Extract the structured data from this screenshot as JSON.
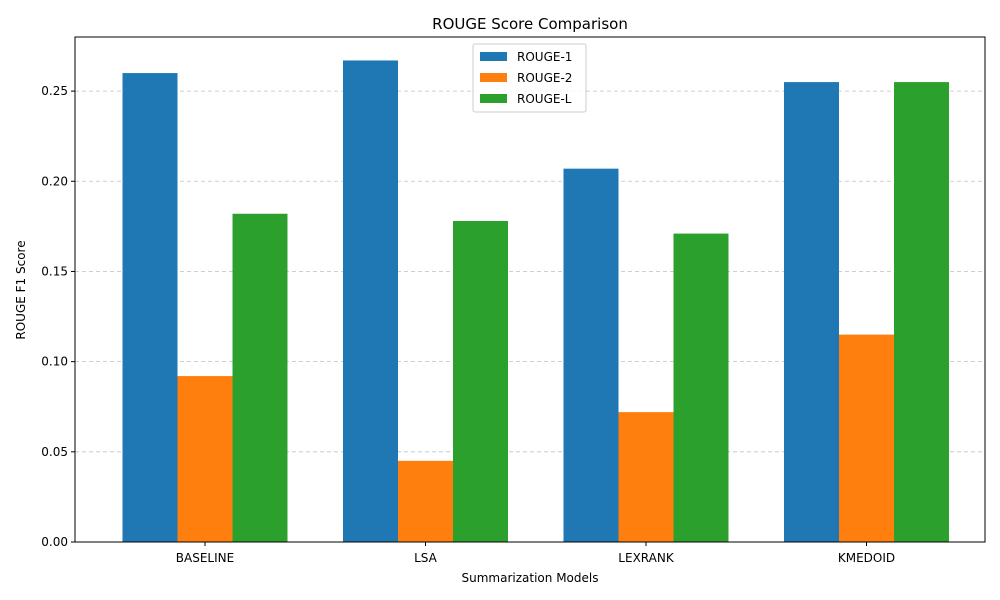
{
  "chart_data": {
    "type": "bar",
    "title": "ROUGE Score Comparison",
    "xlabel": "Summarization Models",
    "ylabel": "ROUGE F1 Score",
    "categories": [
      "BASELINE",
      "LSA",
      "LEXRANK",
      "KMEDOID"
    ],
    "series": [
      {
        "name": "ROUGE-1",
        "color": "#1f77b4",
        "values": [
          0.26,
          0.267,
          0.207,
          0.255
        ]
      },
      {
        "name": "ROUGE-2",
        "color": "#ff7f0e",
        "values": [
          0.092,
          0.045,
          0.072,
          0.115
        ]
      },
      {
        "name": "ROUGE-L",
        "color": "#2ca02c",
        "values": [
          0.182,
          0.178,
          0.171,
          0.255
        ]
      }
    ],
    "ylim": [
      0,
      0.28
    ],
    "yticks": [
      "0.00",
      "0.05",
      "0.10",
      "0.15",
      "0.20",
      "0.25"
    ],
    "grid": "y-dashed",
    "legend_position": "top-center"
  }
}
